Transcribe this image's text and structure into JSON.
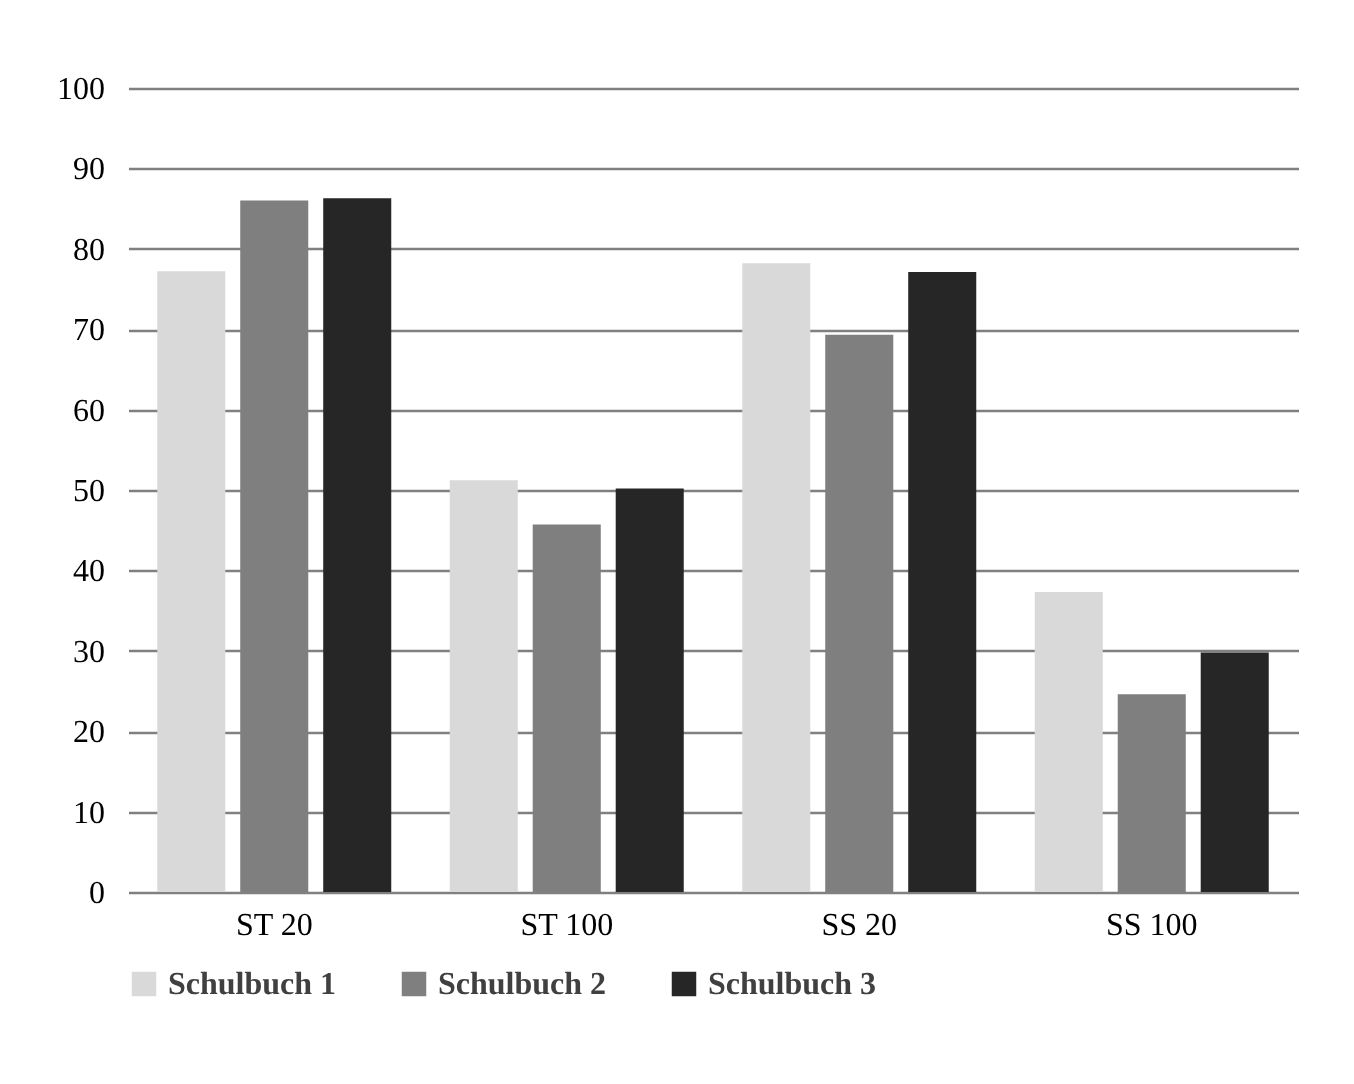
{
  "chart_data": {
    "type": "bar",
    "categories": [
      "ST 20",
      "ST 100",
      "SS 20",
      "SS 100"
    ],
    "series": [
      {
        "name": "Schulbuch 1",
        "color": "#d9d9d9",
        "values": [
          77.2,
          51.2,
          78.2,
          37.3
        ]
      },
      {
        "name": "Schulbuch 2",
        "color": "#7f7f7f",
        "values": [
          86.0,
          45.7,
          69.3,
          24.6
        ]
      },
      {
        "name": "Schulbuch 3",
        "color": "#262626",
        "values": [
          86.3,
          50.2,
          77.1,
          29.8
        ]
      }
    ],
    "ylim": [
      0,
      100
    ],
    "yticks": [
      0,
      10,
      20,
      30,
      40,
      50,
      60,
      70,
      80,
      90,
      100
    ],
    "grid": "y",
    "legend": "bottom"
  }
}
